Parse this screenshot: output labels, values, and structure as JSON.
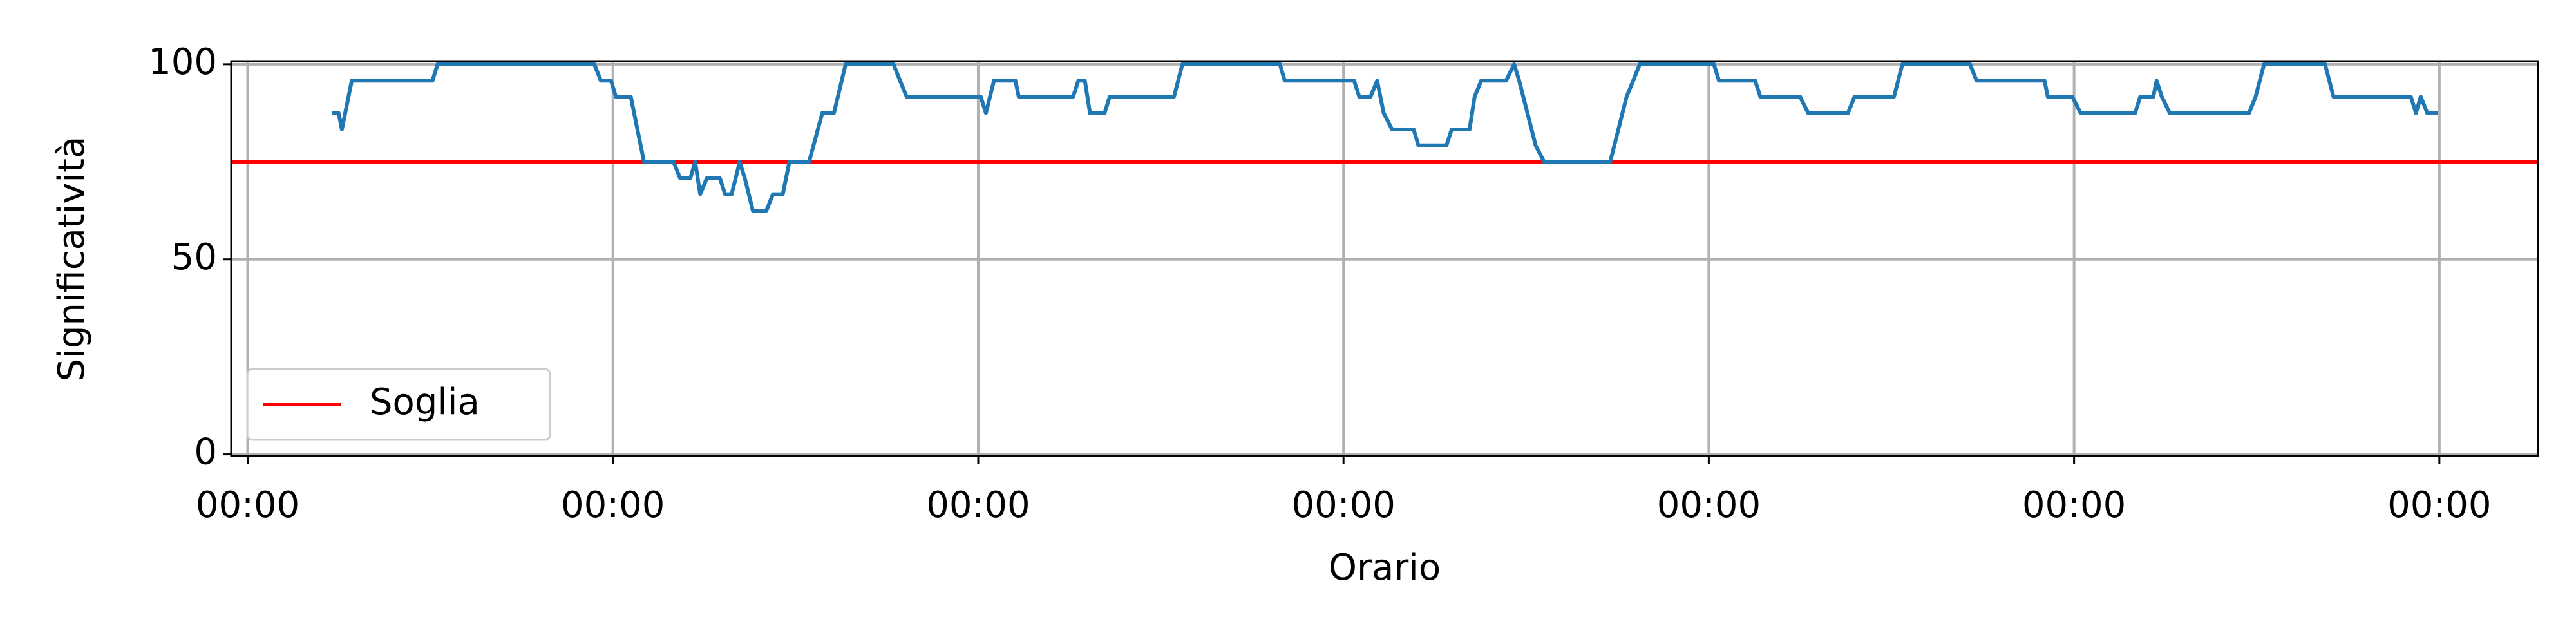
{
  "chart_data": {
    "type": "line",
    "x_label": "Orario",
    "y_label": "Significatività",
    "xlim": [
      -0.045,
      6.27
    ],
    "ylim": [
      -0.4,
      100.8
    ],
    "xticks": [
      {
        "value": 0,
        "label": "00:00"
      },
      {
        "value": 1,
        "label": "00:00"
      },
      {
        "value": 2,
        "label": "00:00"
      },
      {
        "value": 3,
        "label": "00:00"
      },
      {
        "value": 4,
        "label": "00:00"
      },
      {
        "value": 5,
        "label": "00:00"
      },
      {
        "value": 6,
        "label": "00:00"
      }
    ],
    "yticks": [
      0,
      50,
      100
    ],
    "grid": true,
    "legend": "lower left",
    "series": [
      {
        "color": "#1f77b4",
        "x": [
          0.231,
          0.249,
          0.258,
          0.285,
          0.506,
          0.52,
          0.949,
          0.967,
          0.995,
          1.008,
          1.049,
          1.085,
          1.166,
          1.184,
          1.212,
          1.225,
          1.239,
          1.257,
          1.293,
          1.307,
          1.325,
          1.347,
          1.361,
          1.383,
          1.42,
          1.438,
          1.465,
          1.483,
          1.537,
          1.573,
          1.605,
          1.637,
          1.768,
          1.786,
          1.804,
          2.007,
          2.021,
          2.043,
          2.102,
          2.111,
          2.26,
          2.274,
          2.292,
          2.306,
          2.346,
          2.36,
          2.536,
          2.559,
          2.826,
          2.839,
          3.029,
          3.043,
          3.074,
          3.092,
          3.11,
          3.133,
          3.192,
          3.205,
          3.282,
          3.296,
          3.345,
          3.359,
          3.377,
          3.445,
          3.467,
          3.481,
          3.526,
          3.549,
          3.73,
          3.775,
          3.793,
          3.811,
          4.014,
          4.028,
          4.127,
          4.141,
          4.25,
          4.272,
          4.381,
          4.399,
          4.507,
          4.53,
          4.715,
          4.733,
          4.919,
          4.928,
          4.995,
          5.018,
          5.167,
          5.181,
          5.217,
          5.226,
          5.24,
          5.262,
          5.479,
          5.497,
          5.52,
          5.687,
          5.71,
          5.922,
          5.936,
          5.949,
          5.967,
          5.995
        ],
        "values": [
          87.5,
          87.5,
          83.3,
          95.8,
          95.8,
          100,
          100,
          95.8,
          95.8,
          91.7,
          91.7,
          75,
          75,
          70.8,
          70.8,
          75,
          66.7,
          70.8,
          70.8,
          66.7,
          66.7,
          75,
          70.8,
          62.5,
          62.5,
          66.7,
          66.7,
          75,
          75,
          87.5,
          87.5,
          100,
          100,
          95.8,
          91.7,
          91.7,
          87.5,
          95.8,
          95.8,
          91.7,
          91.7,
          95.8,
          95.8,
          87.5,
          87.5,
          91.7,
          91.7,
          100,
          100,
          95.8,
          95.8,
          91.7,
          91.7,
          95.8,
          87.5,
          83.3,
          83.3,
          79.2,
          79.2,
          83.3,
          83.3,
          91.7,
          95.8,
          95.8,
          100,
          95.8,
          79.2,
          75,
          75,
          91.7,
          95.8,
          100,
          100,
          95.8,
          95.8,
          91.7,
          91.7,
          87.5,
          87.5,
          91.7,
          91.7,
          100,
          100,
          95.8,
          95.8,
          91.7,
          91.7,
          87.5,
          87.5,
          91.7,
          91.7,
          95.8,
          91.7,
          87.5,
          87.5,
          91.7,
          100,
          100,
          91.7,
          91.7,
          87.5,
          91.7,
          87.5,
          87.5
        ]
      }
    ],
    "hlines": [
      {
        "name": "Soglia",
        "value": 75,
        "color": "#ff0000"
      }
    ]
  }
}
